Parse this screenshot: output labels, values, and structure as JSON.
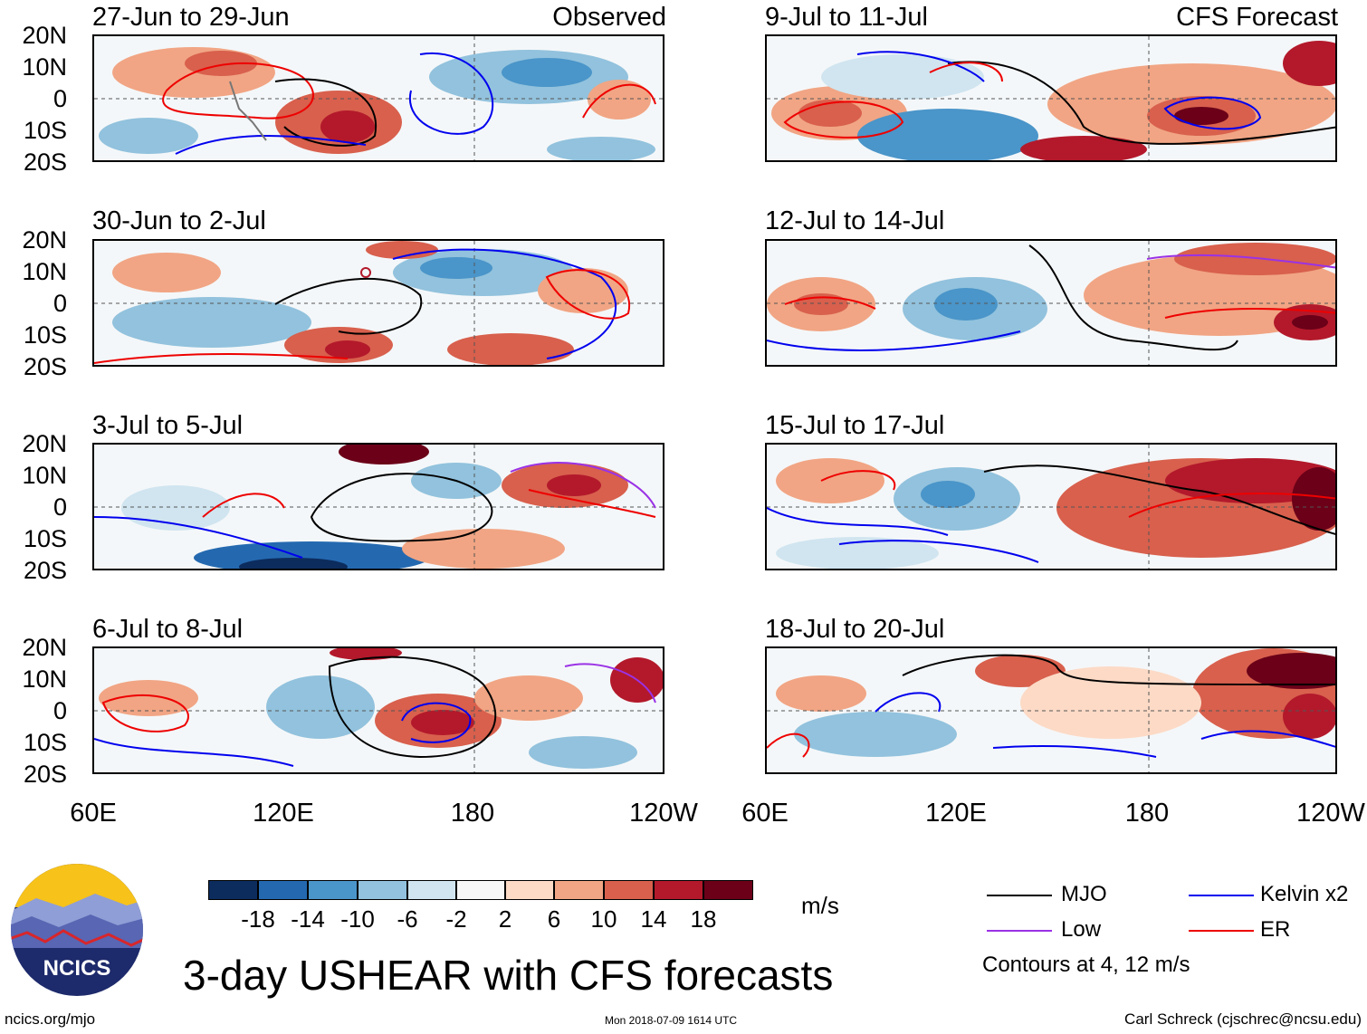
{
  "panels_left": [
    {
      "title": "27-Jun to 29-Jun",
      "tag": "Observed"
    },
    {
      "title": "30-Jun to 2-Jul",
      "tag": ""
    },
    {
      "title": "3-Jul to 5-Jul",
      "tag": ""
    },
    {
      "title": "6-Jul to 8-Jul",
      "tag": ""
    }
  ],
  "panels_right": [
    {
      "title": "9-Jul to 11-Jul",
      "tag": "CFS Forecast"
    },
    {
      "title": "12-Jul to 14-Jul",
      "tag": ""
    },
    {
      "title": "15-Jul to 17-Jul",
      "tag": ""
    },
    {
      "title": "18-Jul to 20-Jul",
      "tag": ""
    }
  ],
  "lat_labels": [
    "20N",
    "10N",
    "0",
    "10S",
    "20S"
  ],
  "lon_labels": [
    "60E",
    "120E",
    "180",
    "120W"
  ],
  "colorbar": {
    "colors": [
      "#0c2c5e",
      "#2469b0",
      "#4a95c9",
      "#92c2dd",
      "#d0e5f0",
      "#f7f7f7",
      "#fcdac6",
      "#f1a584",
      "#d8604d",
      "#b3192b",
      "#6b0018"
    ],
    "labels": [
      "-18",
      "-14",
      "-10",
      "-6",
      "-2",
      "2",
      "6",
      "10",
      "14",
      "18"
    ],
    "unit": "m/s"
  },
  "legend": {
    "items": [
      {
        "label": "MJO",
        "color": "#000000"
      },
      {
        "label": "Kelvin x2",
        "color": "#0000ee"
      },
      {
        "label": "Low",
        "color": "#9a32e6"
      },
      {
        "label": "ER",
        "color": "#ee0000"
      }
    ],
    "note": "Contours at 4, 12 m/s"
  },
  "title": "3-day USHEAR with CFS forecasts",
  "logo_text": "NCICS",
  "footer": {
    "left": "ncics.org/mjo",
    "center": "Mon 2018-07-09 1614 UTC",
    "right": "Carl Schreck (cjschrec@ncsu.edu)"
  }
}
